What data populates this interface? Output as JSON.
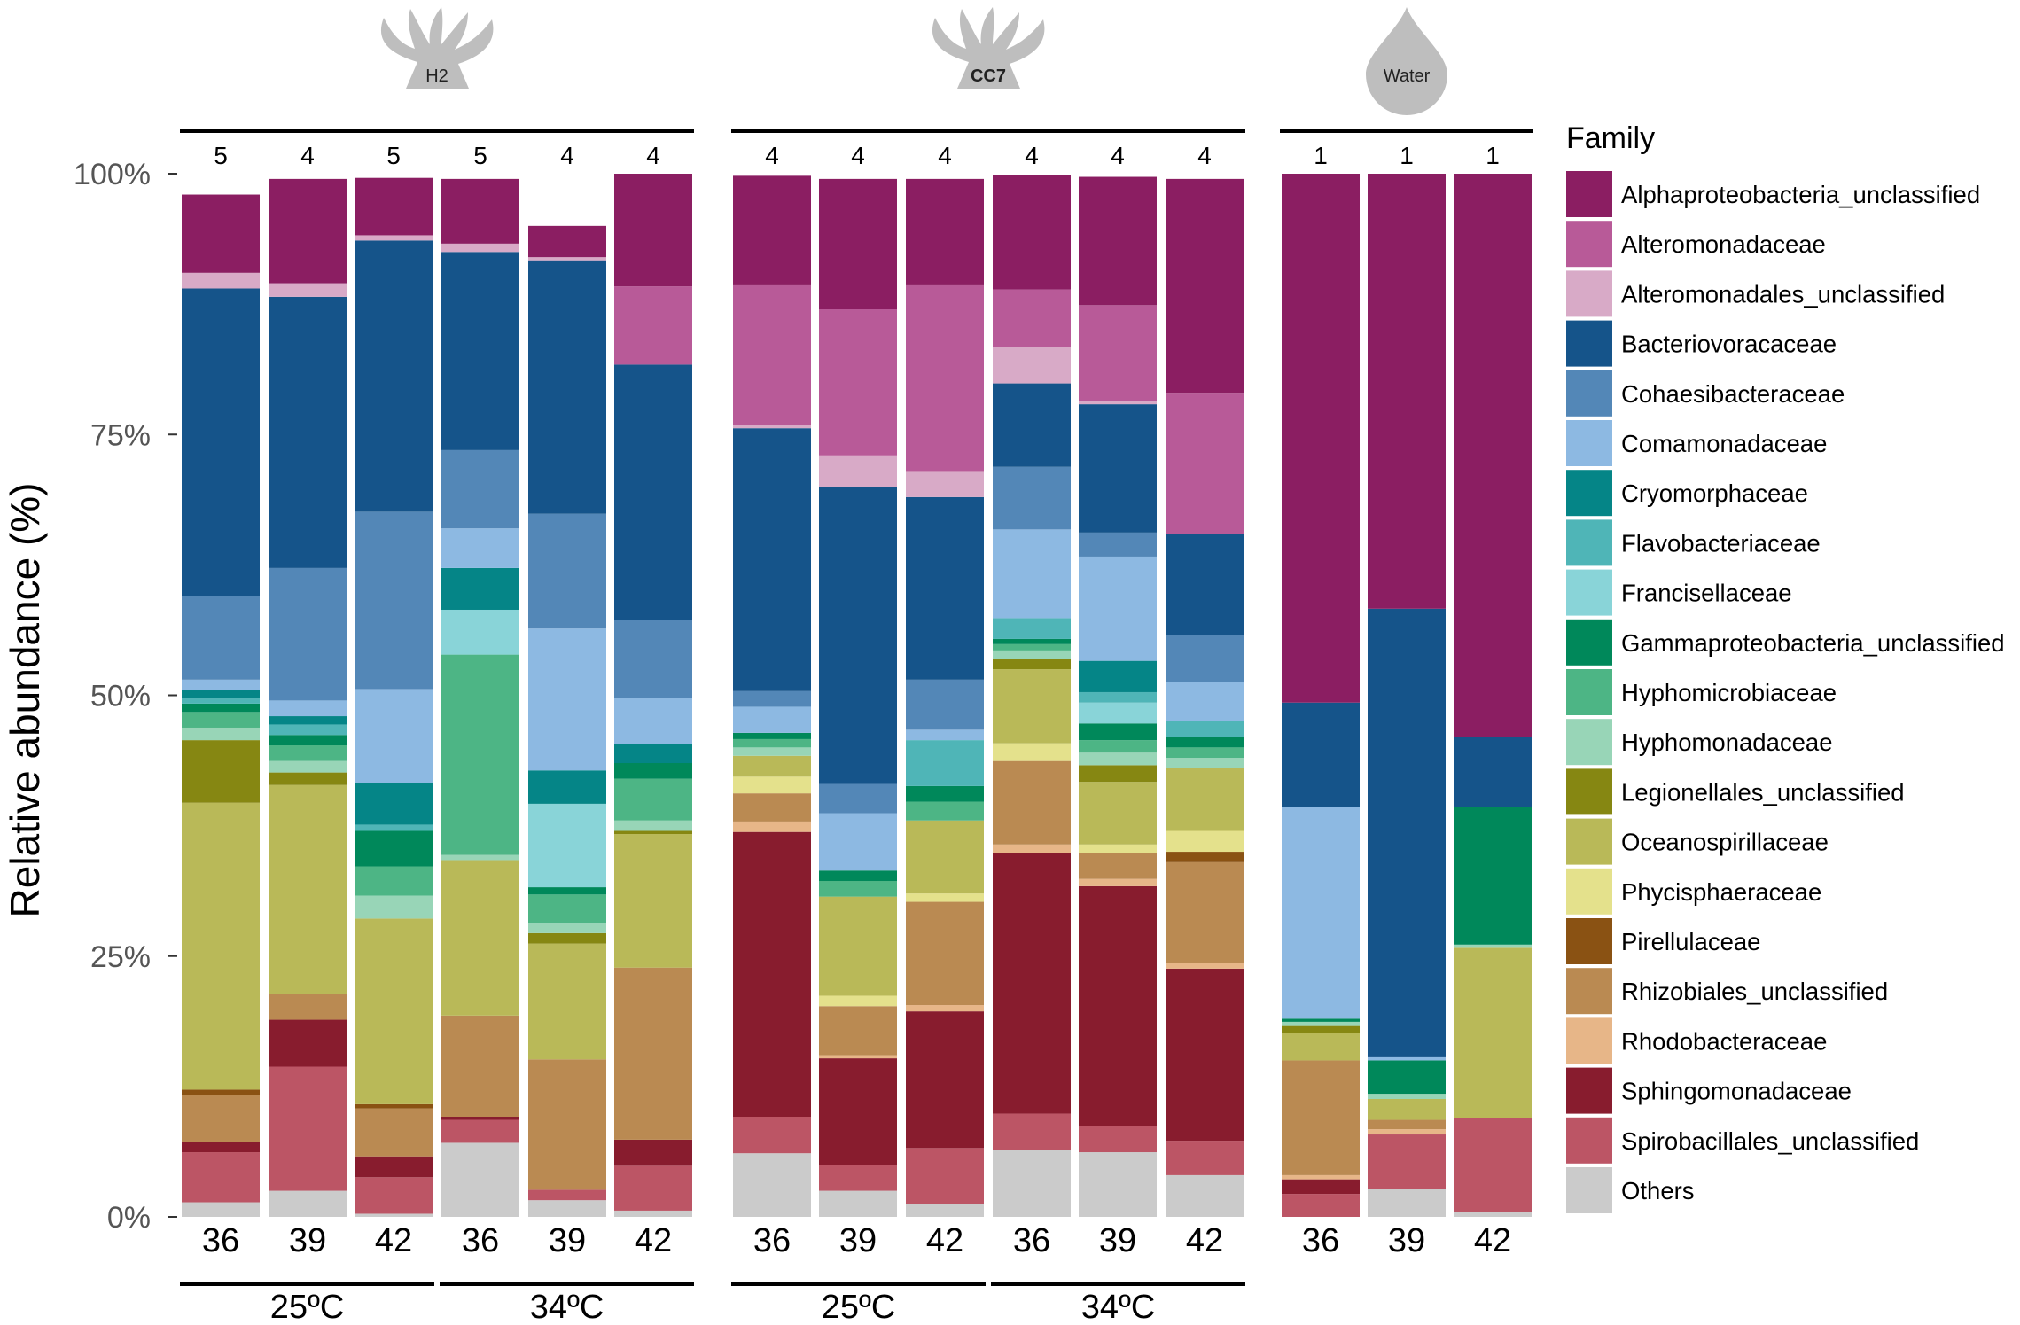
{
  "chart_data": {
    "type": "bar",
    "stacked": true,
    "ylabel": "Relative abundance (%)",
    "ylim": [
      0,
      100
    ],
    "y_ticks": [
      {
        "value": 0,
        "label": "0%"
      },
      {
        "value": 25,
        "label": "25%"
      },
      {
        "value": 50,
        "label": "50%"
      },
      {
        "value": 75,
        "label": "75%"
      },
      {
        "value": 100,
        "label": "100%"
      }
    ],
    "legend_title": "Family",
    "legend_position": "right",
    "families": [
      {
        "name": "Alphaproteobacteria_unclassified",
        "color": "#8B1E62"
      },
      {
        "name": "Alteromonadaceae",
        "color": "#B85A98"
      },
      {
        "name": "Alteromonadales_unclassified",
        "color": "#D8AAC7"
      },
      {
        "name": "Bacteriovoracaceae",
        "color": "#15548A"
      },
      {
        "name": "Cohaesibacteraceae",
        "color": "#5387B7"
      },
      {
        "name": "Comamonadaceae",
        "color": "#8DB9E2"
      },
      {
        "name": "Cryomorphaceae",
        "color": "#058587"
      },
      {
        "name": "Flavobacteriaceae",
        "color": "#4FB5B7"
      },
      {
        "name": "Francisellaceae",
        "color": "#89D4D8"
      },
      {
        "name": "Gammaproteobacteria_unclassified",
        "color": "#00885A"
      },
      {
        "name": "Hyphomicrobiaceae",
        "color": "#4DB585"
      },
      {
        "name": "Hyphomonadaceae",
        "color": "#98D5B7"
      },
      {
        "name": "Legionellales_unclassified",
        "color": "#868712"
      },
      {
        "name": "Oceanospirillaceae",
        "color": "#B9B958"
      },
      {
        "name": "Phycisphaeraceae",
        "color": "#E4E18C"
      },
      {
        "name": "Pirellulaceae",
        "color": "#8A5213"
      },
      {
        "name": "Rhizobiales_unclassified",
        "color": "#BA8A52"
      },
      {
        "name": "Rhodobacteraceae",
        "color": "#E7B688"
      },
      {
        "name": "Sphingomonadaceae",
        "color": "#881C2E"
      },
      {
        "name": "Spirobacillales_unclassified",
        "color": "#BC5565"
      },
      {
        "name": "Others",
        "color": "#CBCBCB"
      }
    ],
    "stack_order": [
      "Others",
      "Spirobacillales_unclassified",
      "Sphingomonadaceae",
      "Rhodobacteraceae",
      "Rhizobiales_unclassified",
      "Pirellulaceae",
      "Phycisphaeraceae",
      "Oceanospirillaceae",
      "Legionellales_unclassified",
      "Hyphomonadaceae",
      "Hyphomicrobiaceae",
      "Gammaproteobacteria_unclassified",
      "Francisellaceae",
      "Flavobacteriaceae",
      "Cryomorphaceae",
      "Comamonadaceae",
      "Cohaesibacteraceae",
      "Bacteriovoracaceae",
      "Alteromonadales_unclassified",
      "Alteromonadaceae",
      "Alphaproteobacteria_unclassified"
    ],
    "groups": [
      {
        "name": "H2",
        "icon": "coral-icon",
        "subgroups": [
          {
            "label": "25ºC",
            "bars": [
              {
                "x": "36",
                "n": "5",
                "values": [
                  7.5,
                  0,
                  1.5,
                  29.5,
                  8,
                  1,
                  0.8,
                  0.5,
                  0,
                  0.8,
                  1.5,
                  1.2,
                  6,
                  27.5,
                  0,
                  0.5,
                  4.5,
                  0,
                  1,
                  4.8,
                  1.4
                ]
              },
              {
                "x": "39",
                "n": "4",
                "values": [
                  10,
                  0,
                  1.3,
                  26,
                  12.7,
                  1.5,
                  0.8,
                  1,
                  0,
                  1,
                  1.5,
                  1.1,
                  1.2,
                  20,
                  0,
                  0,
                  2.5,
                  0,
                  4.5,
                  11.9,
                  2.5
                ]
              },
              {
                "x": "42",
                "n": "5",
                "values": [
                  5.5,
                  0,
                  0.5,
                  26,
                  17,
                  9,
                  4,
                  0.6,
                  0,
                  3.4,
                  2.8,
                  2.2,
                  0,
                  17.8,
                  0,
                  0.4,
                  4.6,
                  0,
                  2,
                  3.5,
                  0.3
                ]
              }
            ]
          },
          {
            "label": "34ºC",
            "bars": [
              {
                "x": "36",
                "n": "5",
                "values": [
                  6.2,
                  0,
                  0.8,
                  19,
                  7.5,
                  3.8,
                  4,
                  0,
                  4.3,
                  0,
                  19.2,
                  0.5,
                  0,
                  14.9,
                  0,
                  0,
                  9.7,
                  0,
                  0.3,
                  2.2,
                  7.1
                ]
              },
              {
                "x": "39",
                "n": "4",
                "values": [
                  3,
                  0,
                  0.3,
                  24.3,
                  11,
                  13.6,
                  3.2,
                  0,
                  8,
                  0.7,
                  2.7,
                  1,
                  1,
                  11.1,
                  0,
                  0,
                  12.5,
                  0,
                  0,
                  1,
                  1.6
                ]
              },
              {
                "x": "42",
                "n": "4",
                "values": [
                  10.8,
                  7.5,
                  0,
                  24.5,
                  7.5,
                  4.4,
                  1.8,
                  0,
                  0,
                  1.5,
                  4,
                  1,
                  0.3,
                  12.8,
                  0,
                  0,
                  16.5,
                  0,
                  2.5,
                  4.3,
                  0.6
                ]
              }
            ]
          }
        ]
      },
      {
        "name": "CC7",
        "icon": "coral-icon",
        "subgroups": [
          {
            "label": "25ºC",
            "bars": [
              {
                "x": "36",
                "n": "4",
                "values": [
                  10.5,
                  13.4,
                  0.3,
                  25.2,
                  1.5,
                  2.5,
                  0,
                  0,
                  0,
                  0.6,
                  0.8,
                  0.8,
                  0,
                  2,
                  1.6,
                  0,
                  2.7,
                  1,
                  27.3,
                  3.5,
                  6.1
                ]
              },
              {
                "x": "39",
                "n": "4",
                "values": [
                  12.5,
                  14,
                  3,
                  28.5,
                  2.8,
                  5.5,
                  0,
                  0,
                  0,
                  1,
                  1.5,
                  0,
                  0,
                  9.5,
                  1,
                  0,
                  4.7,
                  0.3,
                  10.2,
                  2.5,
                  2.5
                ]
              },
              {
                "x": "42",
                "n": "4",
                "values": [
                  10.2,
                  17.8,
                  2.5,
                  17.5,
                  4.8,
                  1,
                  0,
                  4.4,
                  0,
                  1.5,
                  1.8,
                  0,
                  0,
                  7,
                  0.8,
                  0,
                  9.9,
                  0.6,
                  13.1,
                  5.4,
                  1.2
                ]
              }
            ]
          },
          {
            "label": "34ºC",
            "bars": [
              {
                "x": "36",
                "n": "4",
                "values": [
                  11,
                  5.5,
                  3.5,
                  8,
                  6,
                  8.5,
                  0,
                  2,
                  0,
                  0.5,
                  0.6,
                  0.8,
                  1,
                  7.1,
                  1.7,
                  0,
                  8,
                  0.8,
                  25,
                  3.5,
                  6.4
                ]
              },
              {
                "x": "39",
                "n": "4",
                "values": [
                  12.3,
                  9.2,
                  0.3,
                  12.3,
                  2.3,
                  10,
                  3,
                  1,
                  2,
                  1.6,
                  1.2,
                  1.2,
                  1.6,
                  6,
                  0.8,
                  0,
                  2.5,
                  0.7,
                  23,
                  2.5,
                  6.2
                ]
              },
              {
                "x": "42",
                "n": "4",
                "values": [
                  20.5,
                  13.5,
                  0,
                  9.7,
                  4.5,
                  3.8,
                  0,
                  1.5,
                  0,
                  1,
                  1,
                  1,
                  0,
                  6,
                  2,
                  1,
                  9.7,
                  0.5,
                  16.5,
                  3.3,
                  4.0
                ]
              }
            ]
          }
        ]
      },
      {
        "name": "Water",
        "icon": "water-drop-icon",
        "subgroups": [
          {
            "label": "",
            "bars": [
              {
                "x": "36",
                "n": "1",
                "values": [
                  50.7,
                  0,
                  0,
                  10,
                  0,
                  20.3,
                  0,
                  0,
                  0,
                  0.3,
                  0,
                  0.4,
                  0.7,
                  2.6,
                  0,
                  0,
                  11,
                  0.4,
                  1.4,
                  2.2,
                  0
                ]
              },
              {
                "x": "39",
                "n": "1",
                "values": [
                  41.7,
                  0,
                  0,
                  43,
                  0,
                  0.3,
                  0,
                  0,
                  0,
                  3.2,
                  0,
                  0.5,
                  0,
                  2,
                  0,
                  0,
                  0.9,
                  0.5,
                  0,
                  5.2,
                  2.7
                ]
              },
              {
                "x": "42",
                "n": "1",
                "values": [
                  54,
                  0,
                  0,
                  6.7,
                  0,
                  0,
                  0,
                  0,
                  0,
                  13.2,
                  0,
                  0.3,
                  0,
                  16.3,
                  0,
                  0,
                  0,
                  0,
                  0,
                  9,
                  0.5
                ]
              }
            ]
          }
        ]
      }
    ]
  }
}
